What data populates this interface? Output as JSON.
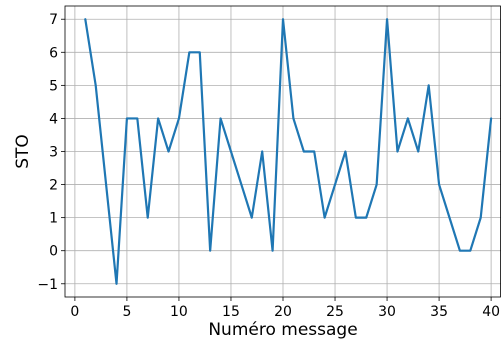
{
  "chart_data": {
    "type": "line",
    "title": "",
    "xlabel": "Numéro message",
    "ylabel": "STO",
    "xlim": [
      -0.95,
      40.95
    ],
    "ylim": [
      -1.4,
      7.4
    ],
    "grid": true,
    "legend": "none",
    "x_ticks": [
      0,
      5,
      10,
      15,
      20,
      25,
      30,
      35,
      40
    ],
    "y_ticks": [
      -1,
      0,
      1,
      2,
      3,
      4,
      5,
      6,
      7
    ],
    "x_tick_labels": [
      "0",
      "5",
      "10",
      "15",
      "20",
      "25",
      "30",
      "35",
      "40"
    ],
    "y_tick_labels": [
      "−1",
      "0",
      "1",
      "2",
      "3",
      "4",
      "5",
      "6",
      "7"
    ],
    "series": [
      {
        "color": "#1f77b4",
        "x": [
          1,
          2,
          3,
          4,
          5,
          6,
          7,
          8,
          9,
          10,
          11,
          12,
          13,
          14,
          15,
          16,
          17,
          18,
          19,
          20,
          21,
          22,
          23,
          24,
          25,
          26,
          27,
          28,
          29,
          30,
          31,
          32,
          33,
          34,
          35,
          36,
          37,
          38,
          39,
          40
        ],
        "values": [
          7,
          5,
          2,
          -1,
          4,
          4,
          1,
          4,
          3,
          4,
          6,
          6,
          0,
          4,
          3,
          2,
          1,
          3,
          0,
          7,
          4,
          3,
          3,
          1,
          2,
          3,
          1,
          1,
          2,
          7,
          3,
          4,
          3,
          5,
          2,
          1,
          0,
          0,
          1,
          4
        ]
      }
    ]
  }
}
